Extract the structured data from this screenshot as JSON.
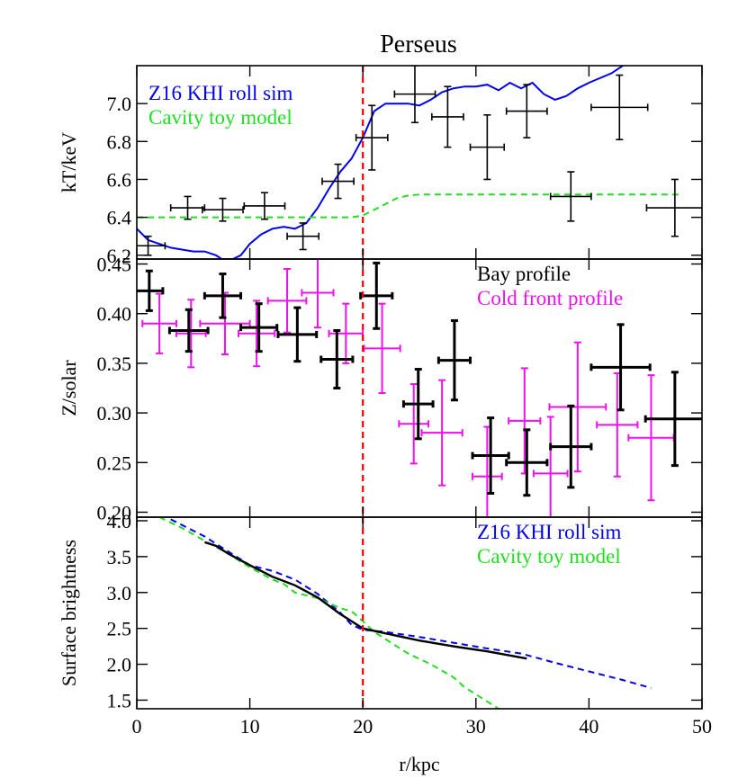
{
  "figure_title": "Perseus",
  "colors": {
    "axes": "#000000",
    "kt_sim": "#0000ee",
    "toy_model": "#22dd22",
    "bay": "#000000",
    "cold_front": "#ee11ee",
    "vline": "#ee0000"
  },
  "chart_data": [
    {
      "type": "scatter",
      "panel": "temperature",
      "ylabel": "kT/keV",
      "xlabel": "",
      "xlim": [
        0,
        50
      ],
      "ylim": [
        6.18,
        7.2
      ],
      "yticks": [
        6.2,
        6.4,
        6.6,
        6.8,
        7.0
      ],
      "ytick_labels": [
        "6.2",
        "6.4",
        "6.6",
        "6.8",
        "7.0"
      ],
      "legend": [
        {
          "label": "Z16 KHI roll sim",
          "color": "#0000ee"
        },
        {
          "label": "Cavity toy model",
          "color": "#22dd22"
        }
      ],
      "legend_position": "top-left",
      "vline_x": 20,
      "series": [
        {
          "name": "Z16 KHI roll sim",
          "style": "line",
          "color": "#0000ee",
          "x": [
            0,
            1,
            3,
            5,
            6,
            7,
            7.5,
            8,
            8.5,
            9.2,
            10,
            11,
            12,
            13,
            14,
            15,
            16,
            17,
            18,
            19,
            20,
            21,
            22,
            23,
            24,
            25,
            26,
            27,
            28,
            29,
            30,
            31,
            32,
            33,
            34,
            35,
            36,
            37,
            38,
            39,
            40,
            42,
            43
          ],
          "y": [
            6.34,
            6.28,
            6.24,
            6.22,
            6.22,
            6.2,
            6.18,
            6.18,
            6.18,
            6.2,
            6.26,
            6.31,
            6.34,
            6.35,
            6.34,
            6.37,
            6.45,
            6.55,
            6.64,
            6.71,
            6.82,
            6.96,
            7.0,
            7.0,
            7.0,
            6.99,
            7.02,
            7.06,
            7.08,
            7.09,
            7.09,
            7.1,
            7.07,
            7.11,
            7.08,
            7.11,
            7.05,
            7.02,
            7.04,
            7.08,
            7.11,
            7.16,
            7.2
          ]
        },
        {
          "name": "Cavity toy model",
          "style": "dashed",
          "color": "#22dd22",
          "x": [
            0,
            19,
            20,
            21,
            22,
            23,
            24,
            25,
            26,
            30,
            48
          ],
          "y": [
            6.4,
            6.4,
            6.41,
            6.44,
            6.47,
            6.5,
            6.515,
            6.52,
            6.52,
            6.52,
            6.52
          ]
        },
        {
          "name": "",
          "style": "errorbar",
          "color": "#000000",
          "x": [
            1.0,
            4.5,
            7.6,
            11.3,
            14.7,
            17.8,
            20.8,
            24.6,
            27.5,
            31.0,
            34.5,
            38.4,
            42.7,
            47.6
          ],
          "xerr": [
            1.5,
            1.5,
            1.8,
            1.8,
            1.4,
            1.4,
            1.4,
            1.8,
            1.4,
            1.5,
            1.8,
            1.8,
            2.5,
            2.5
          ],
          "y": [
            6.25,
            6.45,
            6.44,
            6.46,
            6.3,
            6.59,
            6.82,
            7.05,
            6.93,
            6.77,
            6.96,
            6.51,
            6.98,
            6.45
          ],
          "yerr": [
            0.05,
            0.06,
            0.06,
            0.07,
            0.07,
            0.09,
            0.17,
            0.15,
            0.16,
            0.17,
            0.14,
            0.13,
            0.17,
            0.15
          ]
        }
      ]
    },
    {
      "type": "scatter",
      "panel": "metallicity",
      "ylabel": "Z/solar",
      "xlabel": "",
      "xlim": [
        0,
        50
      ],
      "ylim": [
        0.195,
        0.455
      ],
      "yticks": [
        0.2,
        0.25,
        0.3,
        0.35,
        0.4,
        0.45
      ],
      "ytick_labels": [
        "0.20",
        "0.25",
        "0.30",
        "0.35",
        "0.40",
        "0.45"
      ],
      "legend": [
        {
          "label": "Bay profile",
          "color": "#000000"
        },
        {
          "label": "Cold front profile",
          "color": "#ee11ee"
        }
      ],
      "legend_position": "top-right",
      "vline_x": 20,
      "series": [
        {
          "name": "Cold front profile",
          "style": "errorbar",
          "color": "#ee11ee",
          "x": [
            2.0,
            4.8,
            7.8,
            10.6,
            13.3,
            16.0,
            18.5,
            21.7,
            24.5,
            27.0,
            31.0,
            34.3,
            36.6,
            39.0,
            42.5,
            45.5
          ],
          "xerr": [
            1.5,
            1.3,
            2.2,
            1.6,
            1.7,
            1.4,
            1.5,
            1.6,
            1.3,
            1.8,
            1.3,
            1.4,
            1.5,
            2.5,
            1.8,
            2.0
          ],
          "y": [
            0.39,
            0.38,
            0.39,
            0.38,
            0.413,
            0.421,
            0.38,
            0.365,
            0.289,
            0.28,
            0.236,
            0.292,
            0.239,
            0.306,
            0.288,
            0.275
          ],
          "yerr": [
            0.03,
            0.034,
            0.031,
            0.033,
            0.032,
            0.035,
            0.03,
            0.045,
            0.04,
            0.053,
            0.05,
            0.053,
            0.057,
            0.065,
            0.052,
            0.063
          ]
        },
        {
          "name": "Bay profile",
          "style": "errorbar",
          "color": "#000000",
          "x": [
            1.1,
            4.6,
            7.6,
            10.8,
            14.2,
            17.7,
            21.2,
            24.9,
            28.1,
            31.3,
            34.5,
            38.4,
            42.8,
            47.6
          ],
          "xerr": [
            1.2,
            1.7,
            1.6,
            1.6,
            1.7,
            1.4,
            1.4,
            1.3,
            1.4,
            1.6,
            1.8,
            1.8,
            2.6,
            2.6
          ],
          "y": [
            0.423,
            0.383,
            0.418,
            0.386,
            0.379,
            0.354,
            0.418,
            0.309,
            0.353,
            0.257,
            0.25,
            0.266,
            0.346,
            0.294
          ],
          "yerr": [
            0.02,
            0.021,
            0.022,
            0.024,
            0.027,
            0.029,
            0.033,
            0.035,
            0.04,
            0.038,
            0.033,
            0.041,
            0.043,
            0.047
          ]
        }
      ]
    },
    {
      "type": "line",
      "panel": "surface-brightness",
      "ylabel": "Surface brightness",
      "xlabel": "r/kpc",
      "xlim": [
        0,
        50
      ],
      "ylim": [
        1.38,
        4.05
      ],
      "yticks": [
        1.5,
        2.0,
        2.5,
        3.0,
        3.5,
        4.0
      ],
      "ytick_labels": [
        "1.5",
        "2.0",
        "2.5",
        "3.0",
        "3.5",
        "4.0"
      ],
      "xticks": [
        0,
        10,
        20,
        30,
        40,
        50
      ],
      "xtick_labels": [
        "0",
        "10",
        "20",
        "30",
        "40",
        "50"
      ],
      "legend": [
        {
          "label": "Z16 KHI roll sim",
          "color": "#0000ee"
        },
        {
          "label": "Cavity toy model",
          "color": "#22dd22"
        }
      ],
      "legend_position": "top-right",
      "vline_x": 20,
      "series": [
        {
          "name": "Z16 KHI roll sim",
          "style": "dashed",
          "color": "#0000ee",
          "x": [
            3,
            6,
            8,
            10,
            12,
            14,
            16,
            18,
            19,
            20,
            22,
            25,
            28,
            31,
            34,
            37,
            40,
            43,
            45.5
          ],
          "y": [
            4.02,
            3.78,
            3.58,
            3.38,
            3.3,
            3.18,
            2.98,
            2.72,
            2.55,
            2.48,
            2.45,
            2.38,
            2.3,
            2.22,
            2.15,
            2.02,
            1.9,
            1.78,
            1.67
          ]
        },
        {
          "name": "Cavity toy model",
          "style": "dashed",
          "color": "#22dd22",
          "x": [
            2,
            4,
            6,
            8,
            10,
            12,
            13,
            14,
            16,
            18,
            19,
            20,
            21,
            22,
            24,
            26,
            28,
            29,
            30,
            31,
            32,
            33
          ],
          "y": [
            4.05,
            3.9,
            3.72,
            3.55,
            3.35,
            3.18,
            3.12,
            3.0,
            2.92,
            2.78,
            2.74,
            2.6,
            2.45,
            2.35,
            2.15,
            2.0,
            1.82,
            1.68,
            1.58,
            1.48,
            1.38,
            1.35
          ]
        },
        {
          "name": "",
          "style": "solid",
          "color": "#000000",
          "x": [
            6,
            7,
            8,
            10,
            12,
            14,
            16,
            18,
            20,
            22,
            25,
            28,
            31,
            34.5
          ],
          "y": [
            3.7,
            3.65,
            3.55,
            3.38,
            3.22,
            3.1,
            2.93,
            2.7,
            2.5,
            2.43,
            2.33,
            2.25,
            2.18,
            2.08
          ]
        }
      ]
    }
  ]
}
